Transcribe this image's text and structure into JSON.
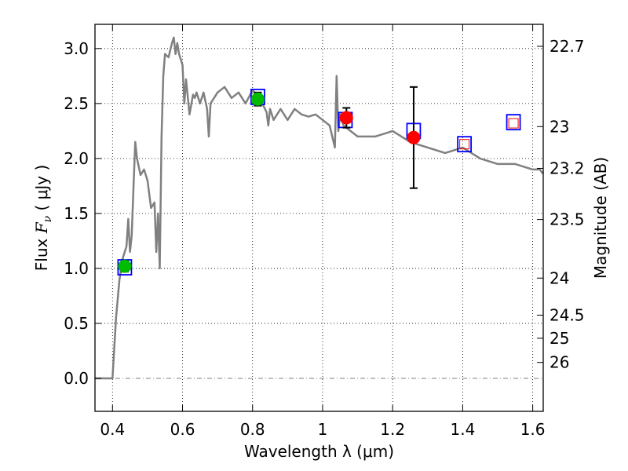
{
  "chart_data": {
    "type": "scatter",
    "xlabel": "Wavelength  λ (μm)",
    "ylabel_parts": {
      "prefix": "Flux  ",
      "symbol": "F",
      "subscript": "ν",
      "suffix": "  ( μJy )"
    },
    "y2label": "Magnitude (AB)",
    "xlim": [
      0.35,
      1.63
    ],
    "ylim": [
      -0.3,
      3.22
    ],
    "grid": true,
    "grid_style": "dotted",
    "zero_line": true,
    "x_ticks": [
      {
        "value": 0.4,
        "label": "0.4"
      },
      {
        "value": 0.6,
        "label": "0.6"
      },
      {
        "value": 0.8,
        "label": "0.8"
      },
      {
        "value": 1.0,
        "label": "1"
      },
      {
        "value": 1.2,
        "label": "1.2"
      },
      {
        "value": 1.4,
        "label": "1.4"
      },
      {
        "value": 1.6,
        "label": "1.6"
      }
    ],
    "y_ticks": [
      {
        "value": 0.0,
        "label": "0.0"
      },
      {
        "value": 0.5,
        "label": "0.5"
      },
      {
        "value": 1.0,
        "label": "1.0"
      },
      {
        "value": 1.5,
        "label": "1.5"
      },
      {
        "value": 2.0,
        "label": "2.0"
      },
      {
        "value": 2.5,
        "label": "2.5"
      },
      {
        "value": 3.0,
        "label": "3.0"
      }
    ],
    "magnitude_ticks": [
      {
        "flux": 3.02,
        "label": "22.7"
      },
      {
        "flux": 2.29,
        "label": "23"
      },
      {
        "flux": 1.91,
        "label": "23.2"
      },
      {
        "flux": 1.445,
        "label": "23.5"
      },
      {
        "flux": 0.912,
        "label": "24"
      },
      {
        "flux": 0.575,
        "label": "24.5"
      },
      {
        "flux": 0.365,
        "label": "25"
      },
      {
        "flux": 0.145,
        "label": "26"
      }
    ],
    "model_spectrum": {
      "color": "#808080",
      "x": [
        0.35,
        0.4,
        0.41,
        0.42,
        0.43,
        0.44,
        0.445,
        0.45,
        0.455,
        0.46,
        0.465,
        0.47,
        0.48,
        0.49,
        0.5,
        0.51,
        0.52,
        0.525,
        0.53,
        0.535,
        0.54,
        0.545,
        0.55,
        0.56,
        0.57,
        0.575,
        0.58,
        0.585,
        0.59,
        0.6,
        0.605,
        0.61,
        0.62,
        0.63,
        0.635,
        0.64,
        0.65,
        0.66,
        0.67,
        0.675,
        0.68,
        0.69,
        0.7,
        0.72,
        0.74,
        0.76,
        0.78,
        0.8,
        0.82,
        0.84,
        0.845,
        0.85,
        0.86,
        0.88,
        0.9,
        0.92,
        0.94,
        0.96,
        0.98,
        1.0,
        1.02,
        1.035,
        1.04,
        1.045,
        1.05,
        1.06,
        1.08,
        1.1,
        1.12,
        1.15,
        1.2,
        1.25,
        1.3,
        1.35,
        1.4,
        1.45,
        1.5,
        1.55,
        1.6,
        1.62,
        1.63
      ],
      "y": [
        0.0,
        0.0,
        0.55,
        0.9,
        1.1,
        1.2,
        1.45,
        1.15,
        1.3,
        1.75,
        2.15,
        2.0,
        1.85,
        1.9,
        1.8,
        1.55,
        1.6,
        1.15,
        1.5,
        1.0,
        2.2,
        2.75,
        2.95,
        2.92,
        3.05,
        3.1,
        2.95,
        3.05,
        2.95,
        2.85,
        2.5,
        2.72,
        2.4,
        2.58,
        2.55,
        2.6,
        2.5,
        2.6,
        2.45,
        2.2,
        2.5,
        2.55,
        2.6,
        2.65,
        2.55,
        2.6,
        2.5,
        2.62,
        2.55,
        2.42,
        2.3,
        2.45,
        2.35,
        2.45,
        2.35,
        2.45,
        2.4,
        2.38,
        2.4,
        2.35,
        2.3,
        2.1,
        2.75,
        2.25,
        2.4,
        2.3,
        2.25,
        2.2,
        2.2,
        2.2,
        2.25,
        2.15,
        2.1,
        2.05,
        2.1,
        2.0,
        1.95,
        1.95,
        1.9,
        1.9,
        1.86
      ]
    },
    "series": [
      {
        "marker": "open-square",
        "color": "#0000ff",
        "points": [
          {
            "x": 0.435,
            "y": 1.01
          },
          {
            "x": 0.815,
            "y": 2.56
          },
          {
            "x": 1.065,
            "y": 2.35
          },
          {
            "x": 1.26,
            "y": 2.25
          },
          {
            "x": 1.405,
            "y": 2.13
          },
          {
            "x": 1.545,
            "y": 2.33
          }
        ]
      },
      {
        "marker": "filled-circle",
        "color": "#00bb00",
        "points": [
          {
            "x": 0.435,
            "y": 1.02,
            "err": 0.05
          },
          {
            "x": 0.815,
            "y": 2.54,
            "err": 0.06
          }
        ]
      },
      {
        "marker": "filled-circle",
        "color": "#ff0000",
        "points": [
          {
            "x": 1.068,
            "y": 2.37,
            "err": 0.09
          },
          {
            "x": 1.26,
            "y": 2.19,
            "err": 0.46
          }
        ]
      },
      {
        "marker": "open-square-small",
        "color": "#ff0000",
        "points": [
          {
            "x": 1.405,
            "y": 2.13
          },
          {
            "x": 1.545,
            "y": 2.32
          }
        ]
      }
    ]
  }
}
